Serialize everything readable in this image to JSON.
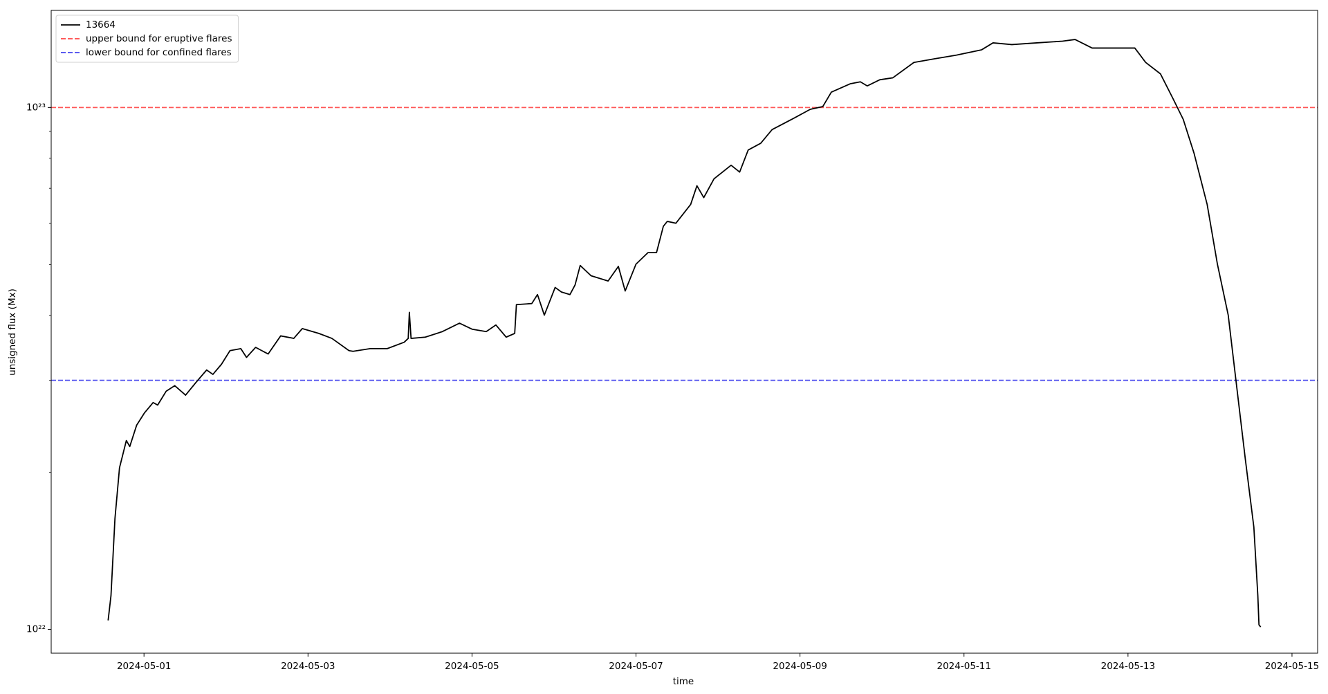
{
  "chart_data": {
    "type": "line",
    "xlabel": "time",
    "ylabel": "unsigned flux (Mx)",
    "ylog": true,
    "legend": "upper left",
    "xlim": [
      "2024-04-29T20:50",
      "2024-05-15T07:30"
    ],
    "xticks": [
      "2024-05-01",
      "2024-05-03",
      "2024-05-05",
      "2024-05-07",
      "2024-05-09",
      "2024-05-11",
      "2024-05-13",
      "2024-05-15"
    ],
    "ylim": [
      9e+21,
      1.535e+23
    ],
    "yticks": [
      {
        "value": 1e+22,
        "label": "10²²"
      },
      {
        "value": 1e+23,
        "label": "10²³"
      }
    ],
    "minor_yticks": [
      2e+22,
      3e+22,
      4e+22,
      5e+22,
      6e+22,
      7e+22,
      8e+22,
      9e+22
    ],
    "hlines": [
      {
        "name": "upper bound for eruptive flares",
        "y": 1e+23,
        "color": "#ff4444"
      },
      {
        "name": "lower bound for confined flares",
        "y": 3e+22,
        "color": "#4444ee"
      }
    ],
    "series": [
      {
        "name": "13664",
        "color": "#000000",
        "x": [
          "2024-04-30T13:30",
          "2024-04-30T14:20",
          "2024-04-30T15:30",
          "2024-04-30T16:50",
          "2024-04-30T18:50",
          "2024-04-30T19:50",
          "2024-04-30T21:50",
          "2024-05-01T00:10",
          "2024-05-01T02:40",
          "2024-05-01T04:00",
          "2024-05-01T06:30",
          "2024-05-01T09:00",
          "2024-05-01T12:10",
          "2024-05-01T15:10",
          "2024-05-01T18:20",
          "2024-05-01T20:10",
          "2024-05-01T22:40",
          "2024-05-02T01:10",
          "2024-05-02T04:20",
          "2024-05-02T06:00",
          "2024-05-02T08:40",
          "2024-05-02T12:20",
          "2024-05-02T16:00",
          "2024-05-02T19:50",
          "2024-05-02T22:20",
          "2024-05-03T03:10",
          "2024-05-03T07:00",
          "2024-05-03T12:00",
          "2024-05-03T13:10",
          "2024-05-03T18:10",
          "2024-05-03T23:10",
          "2024-05-04T04:10",
          "2024-05-04T05:20",
          "2024-05-04T05:40",
          "2024-05-04T06:10",
          "2024-05-04T10:20",
          "2024-05-04T15:20",
          "2024-05-04T20:20",
          "2024-05-05T00:00",
          "2024-05-05T04:10",
          "2024-05-05T07:00",
          "2024-05-05T10:00",
          "2024-05-05T12:30",
          "2024-05-05T13:00",
          "2024-05-05T17:30",
          "2024-05-05T19:10",
          "2024-05-05T21:10",
          "2024-05-06T00:20",
          "2024-05-06T02:10",
          "2024-05-06T04:40",
          "2024-05-06T06:10",
          "2024-05-06T07:40",
          "2024-05-06T10:50",
          "2024-05-06T15:50",
          "2024-05-06T18:50",
          "2024-05-06T20:50",
          "2024-05-07T00:00",
          "2024-05-07T03:30",
          "2024-05-07T06:00",
          "2024-05-07T08:00",
          "2024-05-07T09:10",
          "2024-05-07T11:40",
          "2024-05-07T16:00",
          "2024-05-07T17:50",
          "2024-05-07T19:50",
          "2024-05-07T22:50",
          "2024-05-08T03:50",
          "2024-05-08T06:20",
          "2024-05-08T08:50",
          "2024-05-08T12:30",
          "2024-05-08T15:50",
          "2024-05-08T22:30",
          "2024-05-09T03:00",
          "2024-05-09T06:40",
          "2024-05-09T09:10",
          "2024-05-09T14:40",
          "2024-05-09T17:40",
          "2024-05-09T19:40",
          "2024-05-09T23:20",
          "2024-05-10T03:10",
          "2024-05-10T09:20",
          "2024-05-10T15:30",
          "2024-05-10T21:50",
          "2024-05-11T05:10",
          "2024-05-11T08:30",
          "2024-05-11T14:00",
          "2024-05-11T21:20",
          "2024-05-12T04:50",
          "2024-05-12T08:30",
          "2024-05-12T13:30",
          "2024-05-12T19:50",
          "2024-05-13T02:00",
          "2024-05-13T05:10",
          "2024-05-13T09:30",
          "2024-05-13T13:10",
          "2024-05-13T16:10",
          "2024-05-13T19:20",
          "2024-05-13T23:10",
          "2024-05-14T02:10",
          "2024-05-14T05:20",
          "2024-05-14T07:50",
          "2024-05-14T10:20",
          "2024-05-14T12:50",
          "2024-05-14T14:00",
          "2024-05-14T14:20",
          "2024-05-14T14:50"
        ],
        "values": [
          1.04e+22,
          1.16e+22,
          1.63e+22,
          2.04e+22,
          2.3e+22,
          2.24e+22,
          2.46e+22,
          2.6e+22,
          2.72e+22,
          2.69e+22,
          2.86e+22,
          2.93e+22,
          2.81e+22,
          2.97e+22,
          3.14e+22,
          3.08e+22,
          3.22e+22,
          3.42e+22,
          3.45e+22,
          3.32e+22,
          3.47e+22,
          3.37e+22,
          3.65e+22,
          3.61e+22,
          3.77e+22,
          3.69e+22,
          3.61e+22,
          3.42e+22,
          3.41e+22,
          3.45e+22,
          3.45e+22,
          3.55e+22,
          3.61e+22,
          4.05e+22,
          3.61e+22,
          3.63e+22,
          3.72e+22,
          3.86e+22,
          3.76e+22,
          3.72e+22,
          3.83e+22,
          3.63e+22,
          3.69e+22,
          4.19e+22,
          4.21e+22,
          4.38e+22,
          4e+22,
          4.52e+22,
          4.43e+22,
          4.38e+22,
          4.57e+22,
          4.98e+22,
          4.76e+22,
          4.65e+22,
          4.96e+22,
          4.45e+22,
          5.01e+22,
          5.27e+22,
          5.27e+22,
          5.92e+22,
          6.05e+22,
          6e+22,
          6.52e+22,
          7.08e+22,
          6.72e+22,
          7.3e+22,
          7.75e+22,
          7.52e+22,
          8.29e+22,
          8.54e+22,
          9.07e+22,
          9.56e+22,
          9.92e+22,
          1.004e+23,
          1.07e+23,
          1.11e+23,
          1.12e+23,
          1.1e+23,
          1.13e+23,
          1.14e+23,
          1.22e+23,
          1.24e+23,
          1.26e+23,
          1.29e+23,
          1.33e+23,
          1.32e+23,
          1.33e+23,
          1.34e+23,
          1.35e+23,
          1.3e+23,
          1.3e+23,
          1.3e+23,
          1.22e+23,
          1.16e+23,
          1.04e+23,
          9.49e+22,
          8.17e+22,
          6.52e+22,
          5.01e+22,
          4e+22,
          2.91e+22,
          2.12e+22,
          1.57e+22,
          1.16e+22,
          1.02e+22,
          1.01e+22
        ]
      }
    ]
  }
}
